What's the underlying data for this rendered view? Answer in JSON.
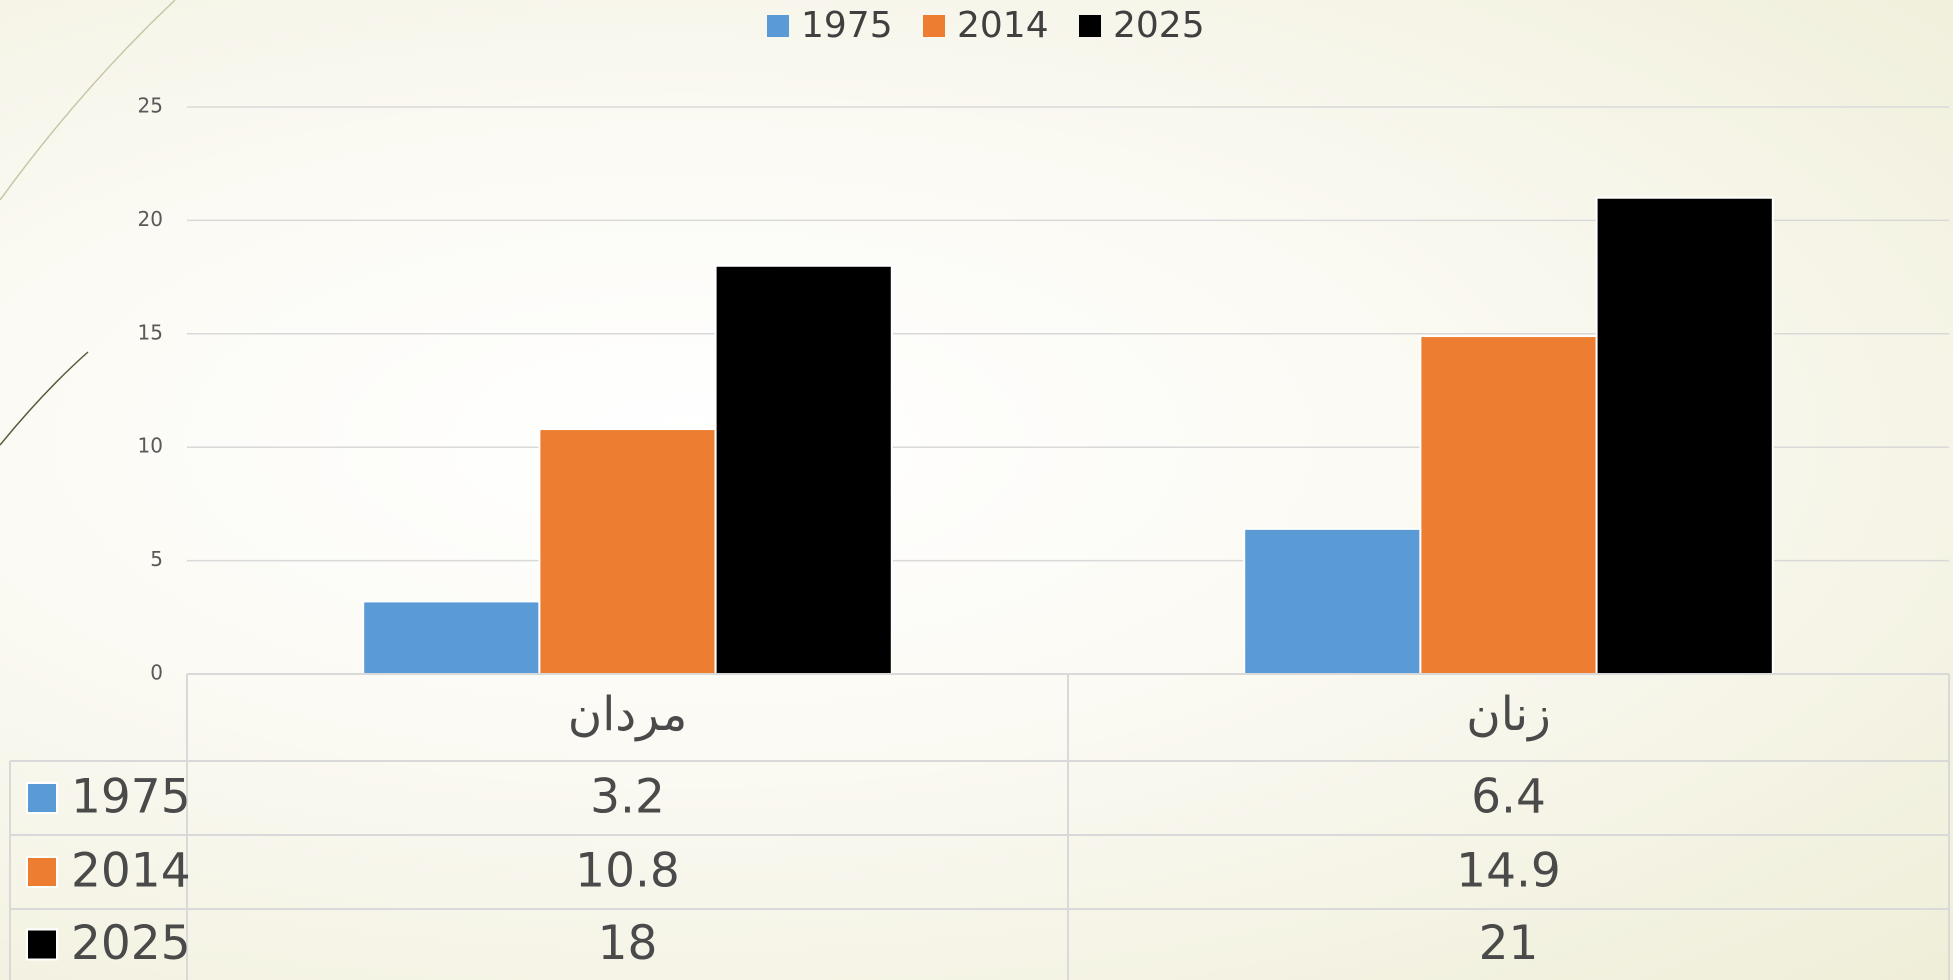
{
  "chart_data": {
    "type": "bar",
    "categories": [
      "مردان",
      "زنان"
    ],
    "series": [
      {
        "name": "1975",
        "color": "#5b9bd5",
        "values": [
          3.2,
          6.4
        ]
      },
      {
        "name": "2014",
        "color": "#ed7d31",
        "values": [
          10.8,
          14.9
        ]
      },
      {
        "name": "2025",
        "color": "#000000",
        "values": [
          18,
          21
        ]
      }
    ],
    "ylim": [
      0,
      25
    ],
    "yticks": [
      0,
      5,
      10,
      15,
      20,
      25
    ],
    "grid": true,
    "legend": "top",
    "data_table": true
  }
}
